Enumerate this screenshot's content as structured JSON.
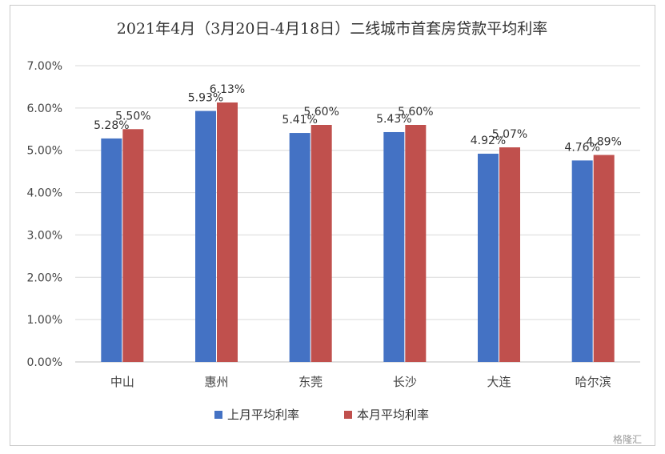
{
  "chart_data": {
    "type": "bar",
    "title": "2021年4月（3月20日-4月18日）二线城市首套房贷款平均利率",
    "xlabel": "",
    "ylabel": "",
    "categories": [
      "中山",
      "惠州",
      "东莞",
      "长沙",
      "大连",
      "哈尔滨"
    ],
    "series": [
      {
        "name": "上月平均利率",
        "color": "#4472c4",
        "values": [
          5.28,
          5.93,
          5.41,
          5.43,
          4.92,
          4.76
        ],
        "labels": [
          "5.28%",
          "5.93%",
          "5.41%",
          "5.43%",
          "4.92%",
          "4.76%"
        ]
      },
      {
        "name": "本月平均利率",
        "color": "#c0504d",
        "values": [
          5.5,
          6.13,
          5.6,
          5.6,
          5.07,
          4.89
        ],
        "labels": [
          "5.50%",
          "6.13%",
          "5.60%",
          "5.60%",
          "5.07%",
          "4.89%"
        ]
      }
    ],
    "ylim": [
      0,
      7
    ],
    "yticks": [
      0,
      1,
      2,
      3,
      4,
      5,
      6,
      7
    ],
    "ytick_labels": [
      "0.00%",
      "1.00%",
      "2.00%",
      "3.00%",
      "4.00%",
      "5.00%",
      "6.00%",
      "7.00%"
    ],
    "grid": true,
    "legend_position": "bottom"
  },
  "watermark": "格隆汇"
}
